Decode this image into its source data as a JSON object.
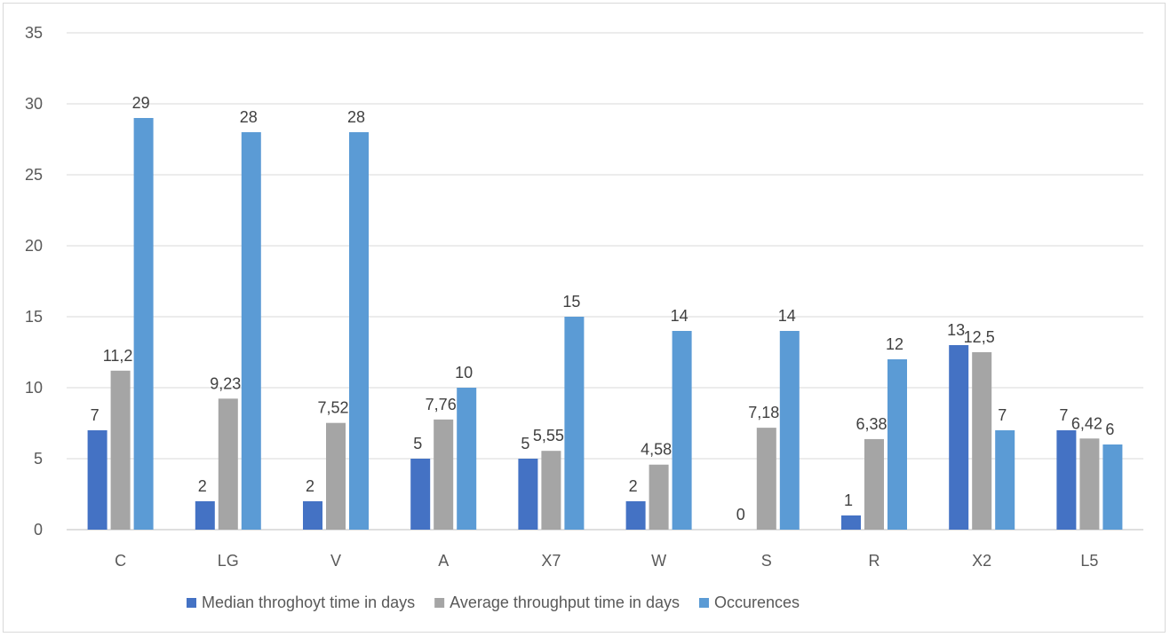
{
  "chart_data": {
    "type": "bar",
    "categories": [
      "C",
      "LG",
      "V",
      "A",
      "X7",
      "W",
      "S",
      "R",
      "X2",
      "L5"
    ],
    "series": [
      {
        "name": "Median throghoyt time in days",
        "color": "#4472c4",
        "values": [
          7,
          2,
          2,
          5,
          5,
          2,
          0,
          1,
          13,
          7
        ],
        "labels": [
          "7",
          "2",
          "2",
          "5",
          "5",
          "2",
          "0",
          "1",
          "13",
          "7"
        ]
      },
      {
        "name": "Average throughput time in days",
        "color": "#a5a5a5",
        "values": [
          11.2,
          9.23,
          7.52,
          7.76,
          5.55,
          4.58,
          7.18,
          6.38,
          12.5,
          6.42
        ],
        "labels": [
          "11,2",
          "9,23",
          "7,52",
          "7,76",
          "5,55",
          "4,58",
          "7,18",
          "6,38",
          "12,5",
          "6,42"
        ]
      },
      {
        "name": "Occurences",
        "color": "#5b9bd5",
        "values": [
          29,
          28,
          28,
          10,
          15,
          14,
          14,
          12,
          7,
          6
        ],
        "labels": [
          "29",
          "28",
          "28",
          "10",
          "15",
          "14",
          "14",
          "12",
          "7",
          "6"
        ]
      }
    ],
    "yticks": [
      "0",
      "5",
      "10",
      "15",
      "20",
      "25",
      "30",
      "35"
    ],
    "ylim": [
      0,
      35
    ],
    "grid": true,
    "legend_position": "bottom",
    "gridline_color": "#d9d9d9",
    "axis_color": "#bfbfbf"
  }
}
